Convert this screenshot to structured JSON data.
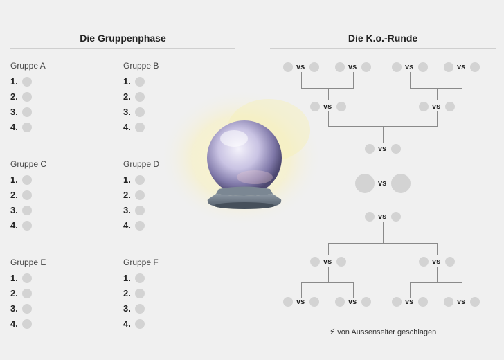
{
  "groups_heading": "Die Gruppenphase",
  "ko_heading": "Die K.o.-Runde",
  "vs_label": "vs",
  "groups": [
    {
      "title": "Gruppe A",
      "ranks": [
        "1.",
        "2.",
        "3.",
        "4."
      ]
    },
    {
      "title": "Gruppe B",
      "ranks": [
        "1.",
        "2.",
        "3.",
        "4."
      ]
    },
    {
      "title": "Gruppe C",
      "ranks": [
        "1.",
        "2.",
        "3.",
        "4."
      ]
    },
    {
      "title": "Gruppe D",
      "ranks": [
        "1.",
        "2.",
        "3.",
        "4."
      ]
    },
    {
      "title": "Gruppe E",
      "ranks": [
        "1.",
        "2.",
        "3.",
        "4."
      ]
    },
    {
      "title": "Gruppe F",
      "ranks": [
        "1.",
        "2.",
        "3.",
        "4."
      ]
    }
  ],
  "legend": {
    "icon": "lightning-bolt-icon",
    "text": "von Aussenseiter geschlagen"
  },
  "colors": {
    "background": "#f0f0f0",
    "slot": "#d3d3d3",
    "bracket_line": "#8a8a8a",
    "text": "#222222"
  }
}
